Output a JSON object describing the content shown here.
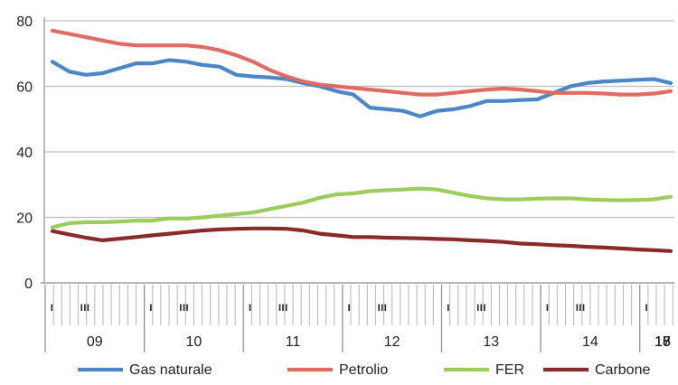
{
  "chart_data": {
    "type": "line",
    "title": "",
    "xlabel": "",
    "ylabel": "",
    "ylim": [
      0,
      80
    ],
    "y_ticks": [
      0,
      20,
      40,
      60,
      80
    ],
    "grid": "horizontal",
    "legend_position": "bottom",
    "years": [
      "09",
      "10",
      "11",
      "12",
      "13",
      "14",
      "15",
      "16",
      "17",
      "18"
    ],
    "quarter_labels": [
      "I",
      "III"
    ],
    "x_periods": 38,
    "series": [
      {
        "name": "Gas naturale",
        "color": "#4a86c8",
        "values": [
          67.5,
          64.5,
          63.5,
          64,
          65.5,
          67,
          67,
          68,
          67.5,
          66.5,
          66,
          63.5,
          63,
          62.7,
          62.2,
          61,
          60,
          58.5,
          57.5,
          53.5,
          53,
          52.5,
          50.8,
          52.5,
          53,
          54,
          55.5,
          55.5,
          55.8,
          56,
          58,
          60,
          61,
          61.5,
          61.7,
          62,
          62.2,
          61
        ]
      },
      {
        "name": "Petrolio",
        "color": "#e06b62",
        "values": [
          77,
          76,
          75,
          74,
          73,
          72.5,
          72.5,
          72.5,
          72.5,
          72,
          71,
          69.5,
          67.5,
          65,
          63,
          61.5,
          60.5,
          60,
          59.5,
          59,
          58.5,
          58,
          57.5,
          57.5,
          58,
          58.5,
          59,
          59.3,
          59,
          58.5,
          58,
          58,
          58,
          57.8,
          57.5,
          57.5,
          57.8,
          58.5
        ]
      },
      {
        "name": "FER",
        "color": "#9ccc5b",
        "values": [
          17,
          18.2,
          18.5,
          18.5,
          18.7,
          19,
          19,
          19.7,
          19.6,
          20,
          20.5,
          21,
          21.5,
          22.5,
          23.5,
          24.5,
          26,
          27,
          27.3,
          28,
          28.3,
          28.5,
          28.8,
          28.5,
          27.5,
          26.5,
          25.8,
          25.5,
          25.5,
          25.7,
          25.8,
          25.8,
          25.5,
          25.3,
          25.2,
          25.3,
          25.5,
          26.3
        ]
      },
      {
        "name": "Carbone",
        "color": "#8b2a2a",
        "values": [
          15.8,
          14.8,
          13.8,
          13,
          13.5,
          14,
          14.5,
          15,
          15.5,
          16,
          16.3,
          16.5,
          16.6,
          16.6,
          16.5,
          16,
          15,
          14.5,
          14,
          14,
          13.8,
          13.7,
          13.6,
          13.4,
          13.3,
          13,
          12.8,
          12.5,
          12,
          11.8,
          11.5,
          11.3,
          11,
          10.8,
          10.5,
          10.2,
          10,
          9.7
        ]
      }
    ]
  }
}
